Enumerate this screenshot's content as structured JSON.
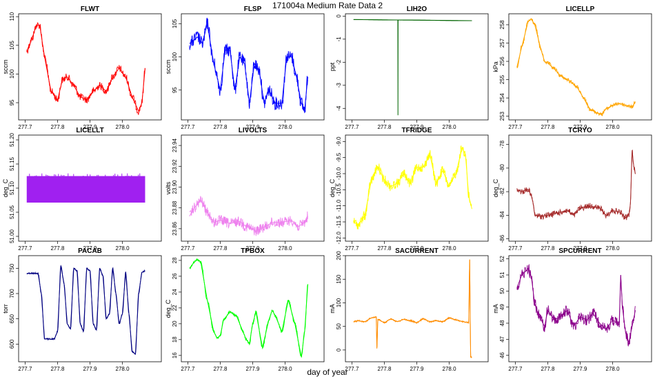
{
  "figure": {
    "title": "171004a   Medium Rate Data 2",
    "xlabel": "day of year"
  },
  "chart_data": [
    {
      "type": "line",
      "title": "FLWT",
      "ylabel": "sccm",
      "color": "#ff0000",
      "xlim": [
        277.68,
        278.12
      ],
      "ylim": [
        92,
        110.5
      ],
      "xticks": [
        277.7,
        277.8,
        277.9,
        278.0
      ],
      "yticks": [
        95,
        100,
        105,
        110
      ],
      "band": 1.3,
      "x": [
        277.705,
        277.72,
        277.735,
        277.745,
        277.76,
        277.78,
        277.8,
        277.815,
        277.83,
        277.85,
        277.87,
        277.89,
        277.91,
        277.93,
        277.95,
        277.97,
        277.99,
        278.01,
        278.03,
        278.05,
        278.06,
        278.07
      ],
      "y": [
        104,
        106,
        108.5,
        108.5,
        103,
        97,
        95.5,
        99,
        99.5,
        98,
        96,
        95.5,
        97,
        98,
        97,
        99.5,
        101,
        99.5,
        96,
        93.5,
        95,
        101
      ]
    },
    {
      "type": "line",
      "title": "FLSP",
      "ylabel": "sccm",
      "color": "#0000ff",
      "xlim": [
        277.68,
        278.12
      ],
      "ylim": [
        90.5,
        106.5
      ],
      "xticks": [
        277.7,
        277.8,
        277.9,
        278.0
      ],
      "yticks": [
        95,
        100,
        105
      ],
      "band": 2.0,
      "x": [
        277.705,
        277.73,
        277.745,
        277.76,
        277.78,
        277.8,
        277.815,
        277.83,
        277.845,
        277.86,
        277.875,
        277.89,
        277.905,
        277.92,
        277.935,
        277.95,
        277.97,
        277.99,
        278.005,
        278.02,
        278.035,
        278.05,
        278.06,
        278.07
      ],
      "y": [
        102,
        103,
        102,
        105,
        99,
        95,
        101,
        101,
        95,
        100,
        99,
        93,
        99,
        98,
        93,
        95,
        93,
        93,
        100,
        100,
        97,
        93,
        92,
        97
      ]
    },
    {
      "type": "line",
      "title": "LIH2O",
      "ylabel": "ppt",
      "color": "#006400",
      "xlim": [
        277.68,
        278.12
      ],
      "ylim": [
        -4.5,
        0.1
      ],
      "xticks": [
        277.7,
        277.8,
        277.9,
        278.0
      ],
      "yticks": [
        -4,
        -3,
        -2,
        -1,
        0
      ],
      "band": 0,
      "x": [
        277.705,
        277.8415,
        277.842,
        277.8425,
        278.07
      ],
      "y": [
        -0.15,
        -0.17,
        -4.3,
        -0.17,
        -0.2
      ]
    },
    {
      "type": "line",
      "title": "LICELLP",
      "ylabel": "kPa",
      "color": "#ffa500",
      "xlim": [
        277.68,
        278.12
      ],
      "ylim": [
        252.8,
        258.6
      ],
      "xticks": [
        277.7,
        277.8,
        277.9,
        278.0
      ],
      "yticks": [
        253,
        254,
        255,
        256,
        257,
        258
      ],
      "band": 0.2,
      "x": [
        277.705,
        277.72,
        277.74,
        277.75,
        277.76,
        277.78,
        277.79,
        277.8,
        277.82,
        277.84,
        277.86,
        277.87,
        277.89,
        277.91,
        277.93,
        277.95,
        277.965,
        277.98,
        278.0,
        278.02,
        278.04,
        278.06,
        278.07
      ],
      "y": [
        255.7,
        256.8,
        258.2,
        258.3,
        258,
        256.6,
        256,
        255.9,
        255.6,
        255.2,
        255,
        254.9,
        254.6,
        254,
        253.4,
        253.2,
        253.1,
        253.4,
        253.6,
        253.7,
        253.6,
        253.5,
        253.8
      ]
    },
    {
      "type": "band",
      "title": "LICELLT",
      "ylabel": "deg_C",
      "color": "#a020f0",
      "xlim": [
        277.68,
        278.12
      ],
      "ylim": [
        50.99,
        51.21
      ],
      "xticks": [
        277.7,
        277.8,
        277.9,
        278.0
      ],
      "yticks": [
        51.0,
        51.05,
        51.1,
        51.15,
        51.2
      ],
      "x": [
        277.705,
        278.07
      ],
      "ymin": 51.07,
      "ymax": 51.125
    },
    {
      "type": "line",
      "title": "LIVOLTS",
      "ylabel": "volts",
      "color": "#ee82ee",
      "xlim": [
        277.68,
        278.12
      ],
      "ylim": [
        23.848,
        23.95
      ],
      "xticks": [
        277.7,
        277.8,
        277.9,
        278.0
      ],
      "yticks": [
        23.86,
        23.88,
        23.9,
        23.92,
        23.94
      ],
      "band": 0.01,
      "x": [
        277.705,
        277.72,
        277.74,
        277.76,
        277.78,
        277.8,
        277.83,
        277.86,
        277.88,
        277.91,
        277.94,
        277.96,
        277.99,
        278.02,
        278.04,
        278.06,
        278.07
      ],
      "y": [
        23.872,
        23.88,
        23.887,
        23.876,
        23.866,
        23.868,
        23.865,
        23.867,
        23.862,
        23.858,
        23.862,
        23.866,
        23.866,
        23.868,
        23.862,
        23.866,
        23.872
      ]
    },
    {
      "type": "line",
      "title": "TFRIDGE",
      "ylabel": "deg_C",
      "color": "#ffff00",
      "xlim": [
        277.68,
        278.12
      ],
      "ylim": [
        -12.1,
        -8.8
      ],
      "xticks": [
        277.7,
        277.8,
        277.9,
        278.0
      ],
      "yticks": [
        -12.0,
        -11.5,
        -11.0,
        -10.5,
        -10.0,
        -9.5,
        -9.0
      ],
      "band": 0.3,
      "x": [
        277.705,
        277.72,
        277.74,
        277.76,
        277.78,
        277.8,
        277.82,
        277.84,
        277.86,
        277.88,
        277.9,
        277.92,
        277.94,
        277.96,
        277.98,
        278.0,
        278.02,
        278.04,
        278.05,
        278.06,
        278.07
      ],
      "y": [
        -11.5,
        -11.6,
        -11.3,
        -10.2,
        -9.8,
        -10.2,
        -10.4,
        -10.3,
        -10.0,
        -10.3,
        -9.8,
        -9.8,
        -9.4,
        -10.3,
        -9.9,
        -10.4,
        -10.0,
        -9.2,
        -9.4,
        -10.7,
        -11.1
      ]
    },
    {
      "type": "line",
      "title": "TCRYO",
      "ylabel": "deg_C",
      "color": "#a52a2a",
      "xlim": [
        277.68,
        278.12
      ],
      "ylim": [
        -86.2,
        -77.2
      ],
      "xticks": [
        277.7,
        277.8,
        277.9,
        278.0
      ],
      "yticks": [
        -86,
        -84,
        -82,
        -80,
        -78
      ],
      "band": 0.5,
      "x": [
        277.705,
        277.72,
        277.74,
        277.75,
        277.755,
        277.76,
        277.78,
        277.8,
        277.83,
        277.86,
        277.88,
        277.9,
        277.93,
        277.96,
        277.98,
        278.0,
        278.02,
        278.04,
        278.05,
        278.055,
        278.06,
        278.065,
        278.07
      ],
      "y": [
        -81.8,
        -82,
        -81.8,
        -82.4,
        -83,
        -84,
        -84.1,
        -84,
        -83.8,
        -83.6,
        -84,
        -83.4,
        -83.2,
        -83.4,
        -84,
        -83.6,
        -83.7,
        -84.2,
        -84,
        -83,
        -78.5,
        -79.8,
        -80.5
      ]
    },
    {
      "type": "line",
      "title": "PACAB",
      "ylabel": "torr",
      "color": "#000080",
      "xlim": [
        277.68,
        278.12
      ],
      "ylim": [
        565,
        775
      ],
      "xticks": [
        277.7,
        277.8,
        277.9,
        278.0
      ],
      "yticks": [
        600,
        650,
        700,
        750
      ],
      "band": 3,
      "x": [
        277.705,
        277.74,
        277.75,
        277.76,
        277.79,
        277.8,
        277.81,
        277.82,
        277.83,
        277.84,
        277.85,
        277.86,
        277.87,
        277.88,
        277.89,
        277.9,
        277.91,
        277.92,
        277.93,
        277.94,
        277.95,
        277.96,
        277.97,
        277.98,
        277.99,
        278.0,
        278.01,
        278.02,
        278.03,
        278.04,
        278.05,
        278.06,
        278.07
      ],
      "y": [
        740,
        740,
        700,
        610,
        610,
        625,
        755,
        720,
        640,
        630,
        750,
        745,
        640,
        625,
        750,
        745,
        640,
        628,
        750,
        735,
        650,
        660,
        750,
        700,
        640,
        660,
        742,
        660,
        585,
        580,
        700,
        742,
        745
      ]
    },
    {
      "type": "line",
      "title": "TPBOX",
      "ylabel": "deg_C",
      "color": "#00ff00",
      "xlim": [
        277.68,
        278.12
      ],
      "ylim": [
        15.2,
        28.6
      ],
      "xticks": [
        277.7,
        277.8,
        277.9,
        278.0
      ],
      "yticks": [
        16,
        18,
        20,
        22,
        24,
        26,
        28
      ],
      "band": 0.3,
      "x": [
        277.705,
        277.72,
        277.73,
        277.74,
        277.76,
        277.78,
        277.79,
        277.8,
        277.81,
        277.83,
        277.85,
        277.87,
        277.88,
        277.89,
        277.9,
        277.91,
        277.93,
        277.95,
        277.96,
        277.97,
        277.99,
        278.01,
        278.03,
        278.05,
        278.06,
        278.07
      ],
      "y": [
        27,
        27.8,
        28.1,
        27.8,
        23,
        19,
        18.2,
        18.5,
        20.5,
        21.5,
        21,
        19,
        18,
        17.5,
        20,
        21.5,
        17,
        20.5,
        21.7,
        21,
        19,
        23,
        20,
        15.8,
        19,
        25
      ]
    },
    {
      "type": "line",
      "title": "SACURRENT",
      "ylabel": "mA",
      "color": "#ff8c00",
      "xlim": [
        277.68,
        278.12
      ],
      "ylim": [
        -25,
        200
      ],
      "xticks": [
        277.7,
        277.8,
        277.9,
        278.0
      ],
      "yticks": [
        0,
        50,
        100,
        150,
        200
      ],
      "band": 3,
      "x": [
        277.705,
        277.72,
        277.74,
        277.76,
        277.775,
        277.777,
        277.78,
        277.8,
        277.82,
        277.84,
        277.86,
        277.88,
        277.9,
        277.92,
        277.94,
        277.96,
        277.98,
        278.0,
        278.02,
        278.04,
        278.06,
        278.063,
        278.066,
        278.07
      ],
      "y": [
        60,
        62,
        60,
        68,
        70,
        3,
        65,
        58,
        66,
        60,
        65,
        62,
        58,
        66,
        60,
        62,
        60,
        68,
        64,
        60,
        58,
        192,
        -15,
        -15
      ]
    },
    {
      "type": "line",
      "title": "SPCURRENT",
      "ylabel": "mA",
      "color": "#8b008b",
      "xlim": [
        277.68,
        278.12
      ],
      "ylim": [
        45.6,
        52.2
      ],
      "xticks": [
        277.7,
        277.8,
        277.9,
        278.0
      ],
      "yticks": [
        46,
        47,
        48,
        49,
        50,
        51,
        52
      ],
      "band": 0.7,
      "x": [
        277.705,
        277.72,
        277.74,
        277.75,
        277.76,
        277.77,
        277.79,
        277.8,
        277.82,
        277.84,
        277.86,
        277.88,
        277.9,
        277.92,
        277.94,
        277.96,
        277.98,
        278.0,
        278.02,
        278.025,
        278.03,
        278.04,
        278.05,
        278.06,
        278.07
      ],
      "y": [
        50.2,
        51,
        51.4,
        50.8,
        49.2,
        48.6,
        47.8,
        48.8,
        48.2,
        48.4,
        48.8,
        47.8,
        48.4,
        48.2,
        48.6,
        48.0,
        47.6,
        48.2,
        47.9,
        51,
        49,
        47.4,
        46.8,
        47.8,
        48.8
      ]
    }
  ]
}
